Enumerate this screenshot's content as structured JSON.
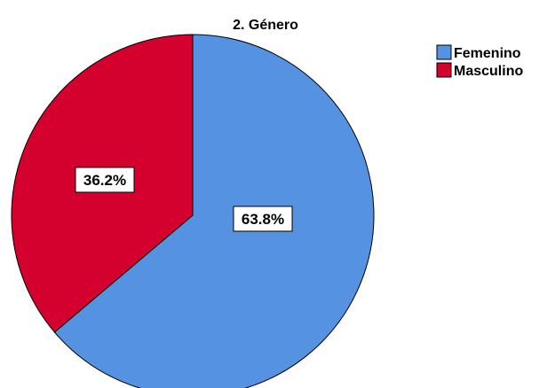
{
  "chart_data": {
    "type": "pie",
    "title": "2. Género",
    "slices": [
      {
        "label": "Femenino",
        "value": 63.8,
        "display": "63.8%",
        "color": "#5593E2"
      },
      {
        "label": "Masculino",
        "value": 36.2,
        "display": "36.2%",
        "color": "#D4002E"
      }
    ],
    "legend_position": "top-right",
    "start_angle_deg": 0,
    "direction": "clockwise"
  }
}
